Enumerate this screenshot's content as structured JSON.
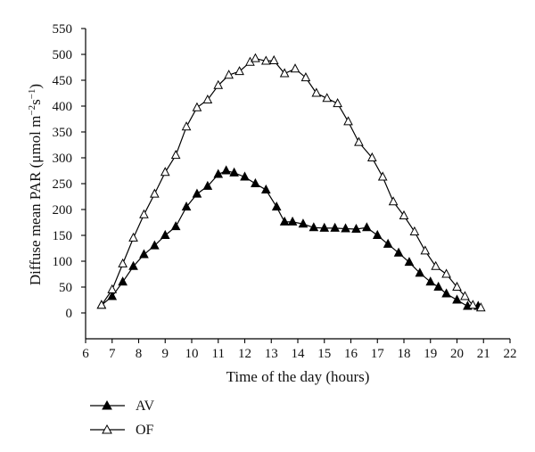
{
  "chart_data": {
    "type": "line",
    "xlabel": "Time of the day (hours)",
    "ylabel_main": "Diffuse mean PAR (",
    "ylabel_unit_mu": "μ",
    "ylabel_unit_mol_m": "mol m",
    "ylabel_exp_m": "−2",
    "ylabel_unit_s": "s",
    "ylabel_exp_s": "−1",
    "ylabel_close": ")",
    "xlim": [
      6,
      22
    ],
    "ylim": [
      -50,
      550
    ],
    "xticks": [
      "6",
      "7",
      "8",
      "9",
      "10",
      "11",
      "12",
      "13",
      "14",
      "15",
      "16",
      "17",
      "18",
      "19",
      "20",
      "21",
      "22"
    ],
    "yticks": [
      "0",
      "50",
      "100",
      "150",
      "200",
      "250",
      "300",
      "350",
      "400",
      "450",
      "500",
      "550"
    ],
    "legend_position": "bottom-left",
    "series": [
      {
        "name": "AV",
        "marker": "filled-triangle",
        "color": "#000000",
        "x": [
          6.6,
          7.0,
          7.4,
          7.8,
          8.2,
          8.6,
          9.0,
          9.4,
          9.8,
          10.2,
          10.6,
          11.0,
          11.3,
          11.6,
          12.0,
          12.4,
          12.8,
          13.2,
          13.5,
          13.8,
          14.2,
          14.6,
          15.0,
          15.4,
          15.8,
          16.2,
          16.6,
          17.0,
          17.4,
          17.8,
          18.2,
          18.6,
          19.0,
          19.3,
          19.6,
          20.0,
          20.4,
          20.8
        ],
        "y": [
          15,
          32,
          60,
          90,
          113,
          130,
          150,
          167,
          205,
          230,
          245,
          268,
          275,
          271,
          263,
          250,
          238,
          205,
          176,
          176,
          172,
          165,
          164,
          164,
          163,
          162,
          165,
          150,
          133,
          116,
          98,
          77,
          60,
          50,
          37,
          25,
          13,
          13
        ]
      },
      {
        "name": "OF",
        "marker": "open-triangle",
        "color": "#000000",
        "x": [
          6.6,
          7.0,
          7.4,
          7.8,
          8.2,
          8.6,
          9.0,
          9.4,
          9.8,
          10.2,
          10.6,
          11.0,
          11.4,
          11.8,
          12.2,
          12.4,
          12.8,
          13.1,
          13.5,
          13.9,
          14.3,
          14.7,
          15.1,
          15.5,
          15.9,
          16.3,
          16.8,
          17.2,
          17.6,
          18.0,
          18.4,
          18.8,
          19.2,
          19.6,
          20.0,
          20.3,
          20.6,
          20.9
        ],
        "y": [
          15,
          45,
          95,
          145,
          190,
          230,
          272,
          305,
          360,
          397,
          412,
          440,
          460,
          467,
          485,
          492,
          487,
          488,
          463,
          472,
          455,
          425,
          415,
          405,
          370,
          330,
          300,
          263,
          215,
          188,
          157,
          120,
          90,
          75,
          50,
          32,
          15,
          10
        ]
      }
    ]
  }
}
